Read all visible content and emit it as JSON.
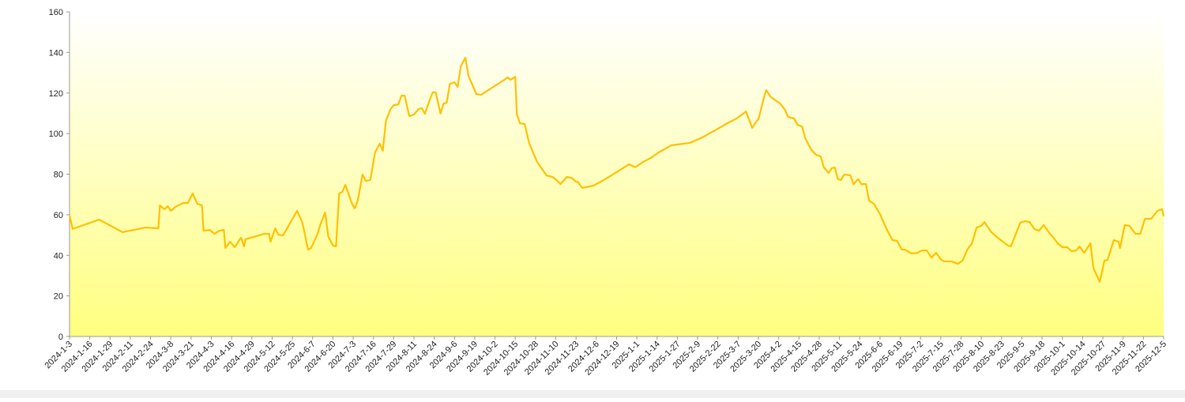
{
  "chart_data": {
    "type": "line",
    "x": [
      "2024-1-3",
      "2024-1-5",
      "2024-1-22",
      "2024-2-6",
      "2024-2-21",
      "2024-2-29",
      "2024-3-1",
      "2024-3-4",
      "2024-3-6",
      "2024-3-8",
      "2024-3-11",
      "2024-3-16",
      "2024-3-19",
      "2024-3-22",
      "2024-3-25",
      "2024-3-28",
      "2024-3-29",
      "2024-4-2",
      "2024-4-5",
      "2024-4-8",
      "2024-4-11",
      "2024-4-12",
      "2024-4-15",
      "2024-4-18",
      "2024-4-22",
      "2024-4-24",
      "2024-4-25",
      "2024-5-7",
      "2024-5-10",
      "2024-5-11",
      "2024-5-14",
      "2024-5-16",
      "2024-5-19",
      "2024-5-28",
      "2024-5-31",
      "2024-6-1",
      "2024-6-4",
      "2024-6-6",
      "2024-6-10",
      "2024-6-12",
      "2024-6-15",
      "2024-6-17",
      "2024-6-20",
      "2024-6-22",
      "2024-6-24",
      "2024-6-26",
      "2024-6-28",
      "2024-7-2",
      "2024-7-4",
      "2024-7-6",
      "2024-7-9",
      "2024-7-11",
      "2024-7-14",
      "2024-7-17",
      "2024-7-20",
      "2024-7-22",
      "2024-7-24",
      "2024-7-27",
      "2024-7-29",
      "2024-8-1",
      "2024-8-3",
      "2024-8-5",
      "2024-8-8",
      "2024-8-11",
      "2024-8-14",
      "2024-8-16",
      "2024-8-18",
      "2024-8-21",
      "2024-8-23",
      "2024-8-25",
      "2024-8-28",
      "2024-8-30",
      "2024-9-1",
      "2024-9-3",
      "2024-9-6",
      "2024-9-8",
      "2024-9-10",
      "2024-9-13",
      "2024-9-15",
      "2024-9-17",
      "2024-9-20",
      "2024-9-23",
      "2024-10-8",
      "2024-10-10",
      "2024-10-12",
      "2024-10-15",
      "2024-10-16",
      "2024-10-18",
      "2024-10-21",
      "2024-10-24",
      "2024-10-29",
      "2024-11-4",
      "2024-11-8",
      "2024-11-11",
      "2024-11-13",
      "2024-11-17",
      "2024-11-20",
      "2024-11-23",
      "2024-11-24",
      "2024-11-27",
      "2024-12-4",
      "2024-12-9",
      "2024-12-14",
      "2024-12-19",
      "2024-12-24",
      "2024-12-27",
      "2024-12-31",
      "2025-1-5",
      "2025-1-10",
      "2025-1-15",
      "2025-1-23",
      "2025-2-4",
      "2025-2-12",
      "2025-2-22",
      "2025-3-1",
      "2025-3-6",
      "2025-3-12",
      "2025-3-16",
      "2025-3-19",
      "2025-3-20",
      "2025-3-24",
      "2025-3-25",
      "2025-3-28",
      "2025-4-3",
      "2025-4-6",
      "2025-4-8",
      "2025-4-12",
      "2025-4-14",
      "2025-4-17",
      "2025-4-19",
      "2025-4-23",
      "2025-4-26",
      "2025-4-29",
      "2025-5-1",
      "2025-5-4",
      "2025-5-6",
      "2025-5-8",
      "2025-5-10",
      "2025-5-12",
      "2025-5-14",
      "2025-5-18",
      "2025-5-20",
      "2025-5-23",
      "2025-5-25",
      "2025-5-28",
      "2025-5-30",
      "2025-6-2",
      "2025-6-6",
      "2025-6-10",
      "2025-6-14",
      "2025-6-17",
      "2025-6-20",
      "2025-6-22",
      "2025-6-26",
      "2025-6-30",
      "2025-7-3",
      "2025-7-6",
      "2025-7-9",
      "2025-7-12",
      "2025-7-15",
      "2025-7-17",
      "2025-7-22",
      "2025-7-26",
      "2025-7-29",
      "2025-8-1",
      "2025-8-4",
      "2025-8-7",
      "2025-8-10",
      "2025-8-12",
      "2025-8-16",
      "2025-8-20",
      "2025-8-27",
      "2025-8-29",
      "2025-9-1",
      "2025-9-4",
      "2025-9-7",
      "2025-9-10",
      "2025-9-13",
      "2025-9-16",
      "2025-9-19",
      "2025-9-23",
      "2025-9-25",
      "2025-9-28",
      "2025-10-1",
      "2025-10-4",
      "2025-10-7",
      "2025-10-10",
      "2025-10-12",
      "2025-10-15",
      "2025-10-19",
      "2025-10-21",
      "2025-10-25",
      "2025-10-28",
      "2025-10-30",
      "2025-11-3",
      "2025-11-6",
      "2025-11-7",
      "2025-11-10",
      "2025-11-13",
      "2025-11-17",
      "2025-11-20",
      "2025-11-23",
      "2025-11-27",
      "2025-12-1",
      "2025-12-4",
      "2025-12-5"
    ],
    "series": [
      {
        "color": "#ffc000",
        "values": [
          59.6,
          53,
          57.6,
          51.4,
          53.7,
          53.3,
          64.6,
          62.7,
          64.2,
          61.9,
          63.9,
          65.8,
          65.8,
          70.5,
          65.4,
          64.6,
          52.1,
          52.5,
          50.6,
          52.1,
          52.5,
          43.6,
          46.7,
          44,
          48.7,
          44.4,
          47.9,
          50.6,
          50.6,
          46.7,
          53.3,
          50.2,
          49.8,
          61.9,
          56.8,
          54.1,
          42.8,
          43.6,
          50.2,
          55.3,
          61.1,
          49.4,
          44.8,
          44.4,
          70.5,
          71.2,
          74.7,
          65.8,
          63.1,
          67.3,
          79.8,
          76.7,
          77.1,
          90.7,
          95,
          91.5,
          106.3,
          112.1,
          114,
          114.4,
          118.7,
          118.7,
          108.6,
          109.4,
          112.1,
          112.5,
          109.8,
          116.4,
          120.3,
          120.3,
          109.8,
          114.8,
          115.2,
          124.5,
          125.3,
          123,
          133.1,
          137.4,
          128.4,
          124.9,
          119.5,
          119.1,
          126.5,
          127.7,
          126.5,
          128,
          109.4,
          105.1,
          104.7,
          95,
          86,
          79.4,
          78.6,
          76.7,
          75.1,
          78.6,
          78.2,
          76.3,
          76.3,
          73.2,
          74.3,
          76.3,
          78.6,
          81,
          83.4,
          84.9,
          83.4,
          86,
          88,
          90.7,
          94.2,
          95.4,
          98.1,
          102.4,
          105.5,
          107.4,
          110.9,
          102.8,
          106.3,
          107,
          119.1,
          121.4,
          117.9,
          114.8,
          111.7,
          108.2,
          107.4,
          104.3,
          103.5,
          97.7,
          91.9,
          89.5,
          88.7,
          83.3,
          80.6,
          82.9,
          83.3,
          77.5,
          77.1,
          79.8,
          79.4,
          75.1,
          77.5,
          75.1,
          75.1,
          66.9,
          65.4,
          60.3,
          53.3,
          47.5,
          47.1,
          42.8,
          42.8,
          40.9,
          41.2,
          42.4,
          42.4,
          38.9,
          41.2,
          38.1,
          37,
          37,
          35.8,
          37.4,
          42.8,
          45.9,
          53.7,
          54.5,
          56.4,
          51.8,
          49,
          44.8,
          44.4,
          50.2,
          56.1,
          56.8,
          56.4,
          53,
          52.1,
          54.9,
          50.6,
          49,
          45.9,
          44,
          44,
          42,
          42.4,
          44.4,
          41.2,
          45.9,
          33.5,
          26.9,
          37.4,
          37.7,
          47.5,
          46.7,
          43.6,
          54.9,
          54.5,
          50.6,
          50.6,
          58,
          58,
          61.9,
          62.7,
          59.2
        ]
      }
    ],
    "xlim": [
      "2024-1-3",
      "2025-12-5"
    ],
    "xticks": [
      "2024-1-3",
      "2024-1-16",
      "2024-1-29",
      "2024-2-11",
      "2024-2-24",
      "2024-3-8",
      "2024-3-21",
      "2024-4-3",
      "2024-4-16",
      "2024-4-29",
      "2024-5-12",
      "2024-5-25",
      "2024-6-7",
      "2024-6-20",
      "2024-7-3",
      "2024-7-16",
      "2024-7-29",
      "2024-8-11",
      "2024-8-24",
      "2024-9-6",
      "2024-9-19",
      "2024-10-2",
      "2024-10-15",
      "2024-10-28",
      "2024-11-10",
      "2024-11-23",
      "2024-12-6",
      "2024-12-19",
      "2025-1-1",
      "2025-1-14",
      "2025-1-27",
      "2025-2-9",
      "2025-2-22",
      "2025-3-7",
      "2025-3-20",
      "2025-4-2",
      "2025-4-15",
      "2025-4-28",
      "2025-5-11",
      "2025-5-24",
      "2025-6-6",
      "2025-6-19",
      "2025-7-2",
      "2025-7-15",
      "2025-7-28",
      "2025-8-10",
      "2025-8-23",
      "2025-9-5",
      "2025-9-18",
      "2025-10-1",
      "2025-10-14",
      "2025-10-27",
      "2025-11-9",
      "2025-11-22",
      "2025-12-5"
    ],
    "ylim": [
      0,
      160
    ],
    "yticks": [
      0,
      20,
      40,
      60,
      80,
      100,
      120,
      140,
      160
    ],
    "background": [
      "#ffffff",
      "#ffff80"
    ]
  }
}
